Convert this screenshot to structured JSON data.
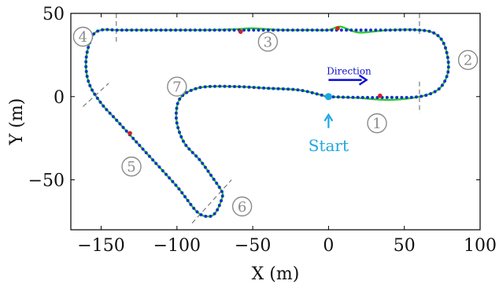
{
  "chart_data": {
    "type": "line",
    "xlabel": "X (m)",
    "ylabel": "Y (m)",
    "xlim": [
      -170,
      100
    ],
    "ylim": [
      -80,
      50
    ],
    "xticks": [
      -150,
      -100,
      -50,
      0,
      50,
      100
    ],
    "xtick_labels": [
      "−150",
      "−100",
      "−50",
      "0",
      "50",
      "100"
    ],
    "yticks": [
      -50,
      0,
      50
    ],
    "ytick_labels": [
      "−50",
      "0",
      "50"
    ],
    "grid": false,
    "colors": {
      "reference_path": "#1733c9",
      "driven_path": "#2ecc2e",
      "markers": "#d42020",
      "start": "#1ea7e0",
      "direction": "#0a0ad8",
      "segment_labels": "#8a8a8a"
    },
    "series": [
      {
        "style": "dotted blue reference trajectory",
        "x": [
          0,
          20,
          40,
          60,
          72,
          78,
          79,
          76,
          70,
          60,
          40,
          20,
          5,
          0,
          -10,
          -30,
          -50,
          -60,
          -80,
          -100,
          -120,
          -140,
          -150,
          -156,
          -160,
          -158,
          -150,
          -140,
          -130,
          -120,
          -100,
          -87,
          -79,
          -74,
          -70,
          -71,
          -77,
          -85,
          -95,
          -100,
          -100,
          -97,
          -90,
          -80,
          -60,
          -40,
          -20,
          -5,
          0
        ],
        "y": [
          0,
          -0.5,
          -0.5,
          0,
          4,
          12,
          21,
          32,
          38,
          40,
          40,
          40,
          40,
          40,
          40,
          40,
          40,
          40,
          40,
          40,
          40,
          40,
          40,
          36,
          22,
          8,
          -4,
          -14,
          -24,
          -34,
          -54,
          -69,
          -72,
          -69,
          -60,
          -56,
          -48,
          -38,
          -28,
          -16,
          -6,
          0,
          4,
          6,
          6,
          5,
          4,
          1,
          0
        ]
      },
      {
        "style": "green driven trajectory",
        "x": [
          0,
          20,
          40,
          60,
          72,
          78,
          79,
          76,
          70,
          60,
          40,
          20,
          8,
          0,
          -10,
          -30,
          -50,
          -60,
          -80,
          -100,
          -120,
          -140,
          -150,
          -156,
          -160,
          -158,
          -150,
          -140,
          -130,
          -120,
          -100,
          -87,
          -79,
          -74,
          -70,
          -71,
          -77,
          -85,
          -95,
          -100,
          -100,
          -97,
          -90,
          -80,
          -60,
          -40,
          -20,
          -5,
          0
        ],
        "y": [
          0,
          -0.8,
          -2.0,
          0,
          4,
          12,
          21,
          32,
          38,
          40,
          40,
          38.5,
          42,
          40,
          40,
          40,
          41,
          40.5,
          40,
          40,
          40,
          40,
          40,
          36,
          22,
          8,
          -4,
          -14,
          -24,
          -34,
          -54,
          -69,
          -72,
          -69,
          -60,
          -56,
          -48,
          -38,
          -28,
          -16,
          -6,
          0,
          4,
          6,
          6,
          5,
          4,
          1,
          0
        ]
      }
    ],
    "markers": [
      {
        "x": 34,
        "y": 0.5
      },
      {
        "x": 6,
        "y": 41
      },
      {
        "x": -58,
        "y": 39
      },
      {
        "x": -131,
        "y": -22
      }
    ],
    "start_point": {
      "x": 0,
      "y": 0,
      "label": "Start"
    },
    "direction": {
      "label": "Direction",
      "x_from": 0,
      "x_to": 25,
      "y": 10
    },
    "segment_labels": [
      {
        "text": "1",
        "x": 32,
        "y": -16
      },
      {
        "text": "2",
        "x": 92,
        "y": 22
      },
      {
        "text": "3",
        "x": -40,
        "y": 33
      },
      {
        "text": "4",
        "x": -162,
        "y": 36
      },
      {
        "text": "5",
        "x": -130,
        "y": -42
      },
      {
        "text": "6",
        "x": -57,
        "y": -66
      },
      {
        "text": "7",
        "x": -100,
        "y": 6
      }
    ],
    "dividers": [
      {
        "x1": 60,
        "y1": 50,
        "x2": 60,
        "y2": 36
      },
      {
        "x1": 60,
        "y1": 9,
        "x2": 60,
        "y2": -10
      },
      {
        "x1": -140,
        "y1": 50,
        "x2": -140,
        "y2": 32
      },
      {
        "x1": -162,
        "y1": -6,
        "x2": -145,
        "y2": 8
      },
      {
        "x1": -90,
        "y1": -76,
        "x2": -64,
        "y2": -50
      }
    ]
  }
}
